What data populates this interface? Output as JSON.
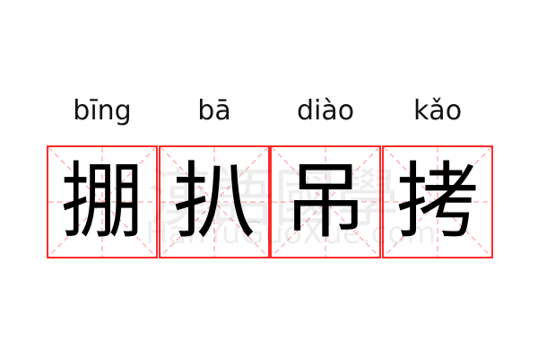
{
  "words": [
    {
      "pinyin": "bīng",
      "char": "掤"
    },
    {
      "pinyin": "bā",
      "char": "扒"
    },
    {
      "pinyin": "diào",
      "char": "吊"
    },
    {
      "pinyin": "kǎo",
      "char": "拷"
    }
  ],
  "watermark": {
    "chinese": "漢語國學",
    "latin": "HanYuGuoXue.com"
  },
  "colors": {
    "grid_border": "#ff2a2a",
    "grid_guides": "#ffaaaa"
  }
}
